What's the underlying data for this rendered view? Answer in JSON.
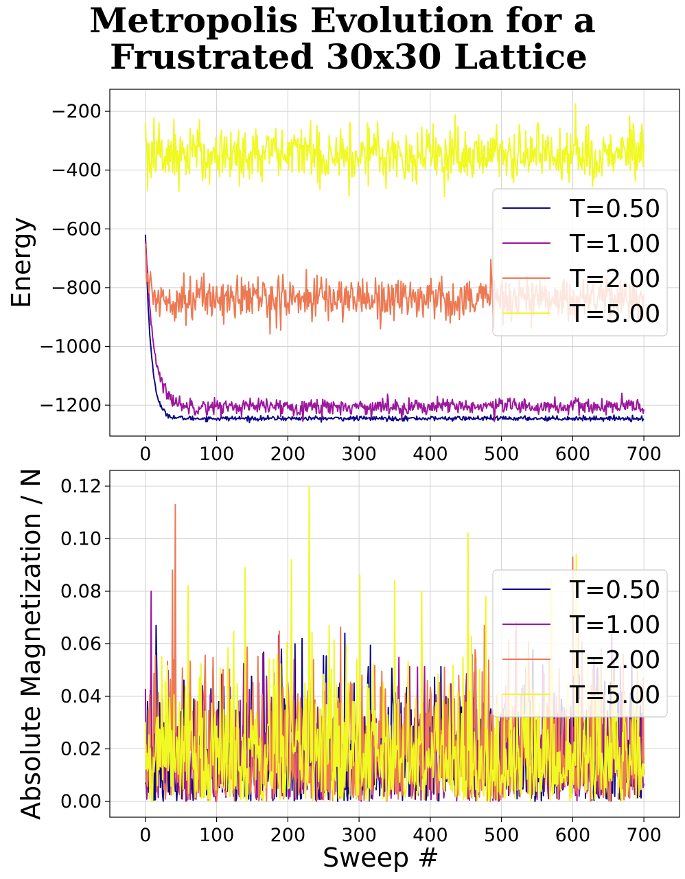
{
  "figure": {
    "title_line1": "Metropolis Evolution for a",
    "title_line2": "Frustrated 30x30 Lattice"
  },
  "chart_data": [
    {
      "type": "line",
      "title": "",
      "xlabel": "",
      "ylabel": "Energy",
      "xlim": [
        -50,
        750
      ],
      "ylim": [
        -1305,
        -125
      ],
      "xticks": [
        0,
        100,
        200,
        300,
        400,
        500,
        600,
        700
      ],
      "yticks": [
        -1200,
        -1000,
        -800,
        -600,
        -400,
        -200
      ],
      "grid": true,
      "legend": "center-right",
      "n_sweeps": 700,
      "series": [
        {
          "name": "T=0.50",
          "color": "#0d0887",
          "start": -620,
          "plateau": -1245,
          "tau": 8,
          "noise": 4,
          "spikes": []
        },
        {
          "name": "T=1.00",
          "color": "#9c179e",
          "start": -640,
          "plateau": -1205,
          "tau": 12,
          "noise": 14,
          "spikes": [
            [
              490,
              -1255
            ]
          ]
        },
        {
          "name": "T=2.00",
          "color": "#ed7953",
          "start": -650,
          "plateau": -835,
          "tau": 3,
          "noise": 38,
          "spikes": [
            [
              190,
              -945
            ],
            [
              330,
              -940
            ]
          ]
        },
        {
          "name": "T=5.00",
          "color": "#f0f921",
          "start": -240,
          "plateau": -345,
          "tau": 1,
          "noise": 50,
          "spikes": [
            [
              3,
              -470
            ],
            [
              604,
              -175
            ],
            [
              420,
              -490
            ]
          ]
        }
      ]
    },
    {
      "type": "line",
      "title": "",
      "xlabel": "Sweep #",
      "ylabel": "Absolute Magnetization / N",
      "xlim": [
        -50,
        750
      ],
      "ylim": [
        -0.006,
        0.126
      ],
      "xticks": [
        0,
        100,
        200,
        300,
        400,
        500,
        600,
        700
      ],
      "yticks": [
        0.0,
        0.02,
        0.04,
        0.06,
        0.08,
        0.1,
        0.12
      ],
      "grid": true,
      "legend": "center-right",
      "n_sweeps": 700,
      "series": [
        {
          "name": "T=0.50",
          "color": "#0d0887",
          "scale": 0.022,
          "spikes": [
            [
              220,
              0.062
            ],
            [
              280,
              0.064
            ],
            [
              15,
              0.067
            ]
          ]
        },
        {
          "name": "T=1.00",
          "color": "#9c179e",
          "scale": 0.022,
          "spikes": [
            [
              8,
              0.08
            ],
            [
              520,
              0.065
            ]
          ]
        },
        {
          "name": "T=2.00",
          "color": "#ed7953",
          "scale": 0.024,
          "spikes": [
            [
              42,
              0.113
            ],
            [
              600,
              0.093
            ],
            [
              38,
              0.088
            ]
          ]
        },
        {
          "name": "T=5.00",
          "color": "#f0f921",
          "scale": 0.024,
          "spikes": [
            [
              230,
              0.12
            ],
            [
              453,
              0.102
            ],
            [
              605,
              0.094
            ],
            [
              205,
              0.092
            ],
            [
              301,
              0.086
            ],
            [
              570,
              0.085
            ],
            [
              350,
              0.084
            ],
            [
              60,
              0.082
            ],
            [
              140,
              0.089
            ],
            [
              388,
              0.08
            ],
            [
              478,
              0.078
            ]
          ]
        }
      ]
    }
  ]
}
